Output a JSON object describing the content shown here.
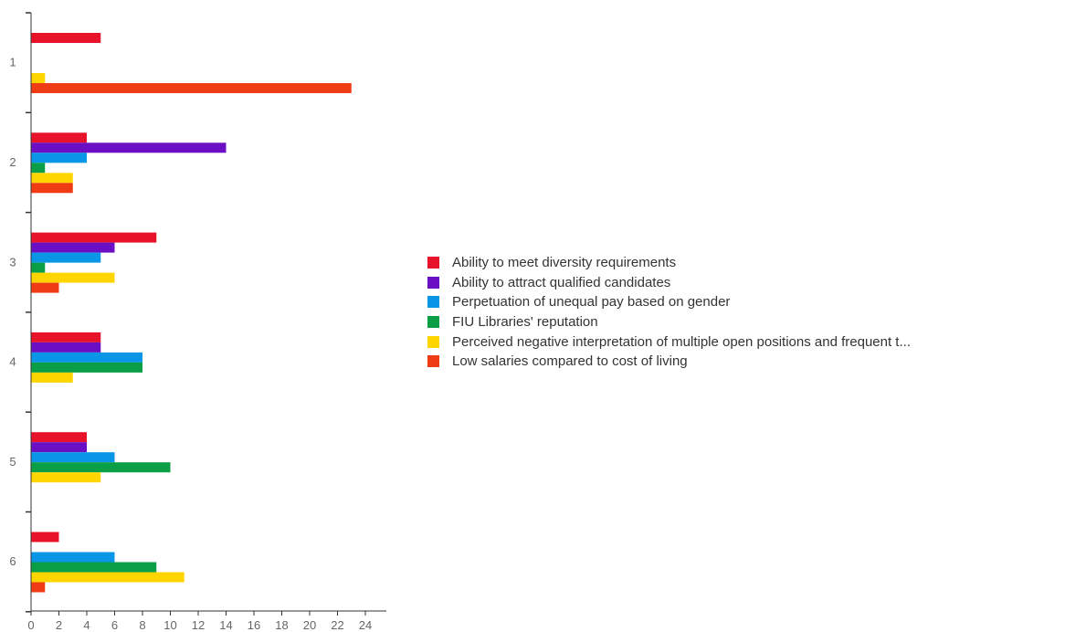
{
  "chart_data": {
    "type": "bar",
    "orientation": "horizontal",
    "categories": [
      "1",
      "2",
      "3",
      "4",
      "5",
      "6"
    ],
    "xlim": [
      0,
      25
    ],
    "x_ticks": [
      "0",
      "2",
      "4",
      "6",
      "8",
      "10",
      "12",
      "14",
      "16",
      "18",
      "20",
      "22",
      "24"
    ],
    "grid": false,
    "legend_position": "right",
    "series": [
      {
        "name": "Ability to meet diversity requirements",
        "color": "#e8132a",
        "values": [
          5,
          4,
          9,
          5,
          4,
          2
        ]
      },
      {
        "name": "Ability to attract qualified candidates",
        "color": "#6a0fc3",
        "values": [
          0,
          14,
          6,
          5,
          4,
          0
        ]
      },
      {
        "name": "Perpetuation of unequal pay based on gender",
        "color": "#0a96e6",
        "values": [
          0,
          4,
          5,
          8,
          6,
          6
        ]
      },
      {
        "name": "FIU Libraries' reputation",
        "color": "#0a9e46",
        "values": [
          0,
          1,
          1,
          8,
          10,
          9
        ]
      },
      {
        "name": "Perceived negative interpretation of multiple open positions and frequent t...",
        "color": "#ffd500",
        "values": [
          1,
          3,
          6,
          3,
          5,
          11
        ]
      },
      {
        "name": "Low salaries compared to cost of living",
        "color": "#f03c14",
        "values": [
          23,
          3,
          2,
          0,
          0,
          1
        ]
      }
    ]
  }
}
